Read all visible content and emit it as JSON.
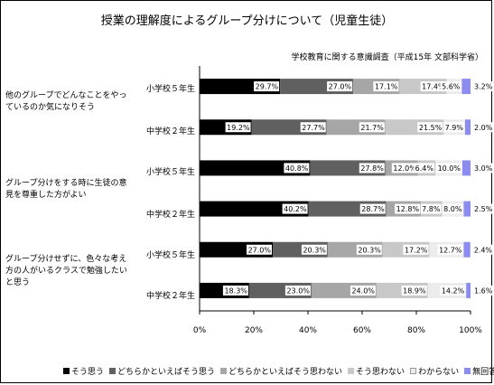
{
  "title": "授業の理解度によるグループ分けについて（児童生徒）",
  "subtitle": "学校教育に関する意識調査（平成15年 文部科学省）",
  "chart_data": {
    "type": "bar",
    "orientation": "horizontal",
    "stacked": true,
    "percent": true,
    "xlim": [
      0,
      100
    ],
    "x_ticks": [
      "0%",
      "20%",
      "40%",
      "60%",
      "80%",
      "100%"
    ],
    "groups": [
      {
        "question": "他のグループでどんなことをやっているのか気になりそう",
        "rows": [
          {
            "label": "小学校５年生",
            "values": [
              29.7,
              27.0,
              17.1,
              17.4,
              5.6,
              3.2
            ],
            "labels": [
              "29.7%",
              "27.0%",
              "17.1%",
              "17.4%",
              "5.6%",
              "3.2%"
            ]
          },
          {
            "label": "中学校２年生",
            "values": [
              19.2,
              27.7,
              21.7,
              21.5,
              7.9,
              2.0
            ],
            "labels": [
              "19.2%",
              "27.7%",
              "21.7%",
              "21.5%",
              "7.9%",
              "2.0%"
            ]
          }
        ]
      },
      {
        "question": "グループ分けをする時に生徒の意見を尊重した方がよい",
        "rows": [
          {
            "label": "小学校５年生",
            "values": [
              40.8,
              27.8,
              12.0,
              6.4,
              10.0,
              3.0
            ],
            "labels": [
              "40.8%",
              "27.8%",
              "12.0%",
              "6.4%",
              "10.0%",
              "3.0%"
            ]
          },
          {
            "label": "中学校２年生",
            "values": [
              40.2,
              28.7,
              12.8,
              7.8,
              8.0,
              2.5
            ],
            "labels": [
              "40.2%",
              "28.7%",
              "12.8%",
              "7.8%",
              "8.0%",
              "2.5%"
            ]
          }
        ]
      },
      {
        "question": "グループ分けせずに、色々な考え方の人がいるクラスで勉強したいと思う",
        "rows": [
          {
            "label": "小学校５年生",
            "values": [
              27.0,
              20.3,
              20.3,
              17.2,
              12.7,
              2.4
            ],
            "labels": [
              "27.0%",
              "20.3%",
              "20.3%",
              "17.2%",
              "12.7%",
              "2.4%"
            ]
          },
          {
            "label": "中学校２年生",
            "values": [
              18.3,
              23.0,
              24.0,
              18.9,
              14.2,
              1.6
            ],
            "labels": [
              "18.3%",
              "23.0%",
              "24.0%",
              "18.9%",
              "14.2%",
              "1.6%"
            ]
          }
        ]
      }
    ],
    "series": [
      {
        "name": "そう思う",
        "color": "#000000"
      },
      {
        "name": "どちらかといえばそう思う",
        "color": "#606060"
      },
      {
        "name": "どちらかといえばそう思わない",
        "color": "#a6a6a6"
      },
      {
        "name": "そう思わない",
        "color": "#c8c8c8"
      },
      {
        "name": "わからない",
        "color": "#ececec"
      },
      {
        "name": "無回答",
        "color": "#8c8cf0"
      }
    ],
    "legend_position": "bottom",
    "grid": true
  }
}
